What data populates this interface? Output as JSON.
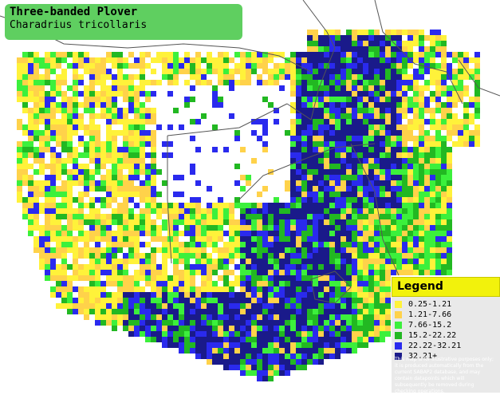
{
  "title": {
    "common_name": "Three-banded Plover",
    "scientific_name": "Charadrius tricollaris"
  },
  "legend": {
    "heading": "Legend",
    "items": [
      {
        "label": "0.25-1.21",
        "color": "#fff23a"
      },
      {
        "label": "1.21-7.66",
        "color": "#ffd24a"
      },
      {
        "label": "7.66-15.2",
        "color": "#3cf03c"
      },
      {
        "label": "15.2-22.22",
        "color": "#22b822"
      },
      {
        "label": "22.22-32.21",
        "color": "#2a2aee"
      },
      {
        "label": "32.21+",
        "color": "#1a1a8a"
      }
    ],
    "disclaimer": "This map is for illustrative purposes only; it is produced automatically from the current SABAP2 database, and may contain datapoints which will subsequently be removed during checking operations."
  },
  "colors": {
    "title_bg": "#5fcf60",
    "legend_header_bg": "#f2f20c",
    "legend_bg": "#e9e9e9"
  }
}
